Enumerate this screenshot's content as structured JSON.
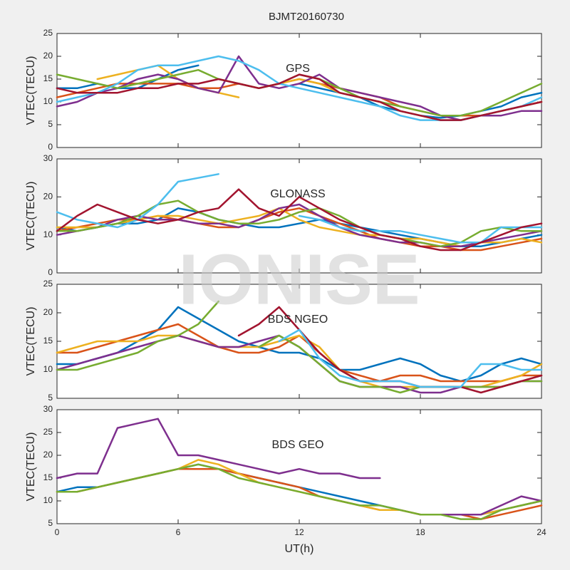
{
  "title": "BJMT20160730",
  "watermark": "IONISE",
  "chart_data": [
    {
      "type": "line",
      "annotation": "GPS",
      "ylabel": "VTEC(TECU)",
      "xlim": [
        0,
        24
      ],
      "xticks": [
        0,
        6,
        12,
        18,
        24
      ],
      "xtick_labels": false,
      "ylim": [
        0,
        25
      ],
      "yticks": [
        0,
        5,
        10,
        15,
        20,
        25
      ],
      "x": [
        0,
        1,
        2,
        3,
        4,
        5,
        6,
        7,
        8,
        9,
        10,
        11,
        12,
        13,
        14,
        15,
        16,
        17,
        18,
        19,
        20,
        21,
        22,
        23,
        24
      ],
      "series": [
        {
          "color": "#0072BD",
          "values": [
            13,
            13,
            14,
            13,
            13,
            15,
            17,
            18,
            null,
            null,
            null,
            null,
            14,
            13,
            12,
            11,
            9,
            8,
            7,
            6.5,
            7,
            8,
            9,
            11,
            12
          ]
        },
        {
          "color": "#D95319",
          "values": [
            11,
            12,
            13,
            14,
            14,
            14,
            14,
            13,
            13,
            14,
            13,
            14,
            15,
            14,
            13,
            12,
            11,
            9,
            8,
            7,
            7,
            7,
            8,
            9,
            10
          ]
        },
        {
          "color": "#EDB120",
          "values": [
            null,
            null,
            15,
            16,
            17,
            18,
            15,
            13,
            12,
            11,
            null,
            14,
            15,
            14,
            12,
            11,
            10,
            8,
            7,
            6,
            6,
            7,
            8,
            9,
            10
          ]
        },
        {
          "color": "#7E2F8E",
          "values": [
            9,
            10,
            12,
            13,
            15,
            16,
            15,
            13,
            12,
            20,
            14,
            13,
            14,
            16,
            13,
            12,
            11,
            10,
            9,
            7,
            6,
            7,
            7,
            8,
            8
          ]
        },
        {
          "color": "#77AC30",
          "values": [
            16,
            15,
            14,
            13,
            14,
            15,
            16,
            17,
            15,
            14,
            13,
            14,
            16,
            15,
            13,
            11,
            10,
            9,
            8,
            7,
            7,
            8,
            10,
            12,
            14
          ]
        },
        {
          "color": "#4DBEEE",
          "values": [
            10,
            11,
            12,
            14,
            17,
            18,
            18,
            19,
            20,
            19,
            17,
            14,
            13,
            12,
            11,
            10,
            9,
            7,
            6,
            6,
            6,
            7,
            8,
            9,
            11
          ]
        },
        {
          "color": "#A2142F",
          "values": [
            13,
            12,
            12,
            12,
            13,
            13,
            14,
            14,
            15,
            14,
            13,
            14,
            16,
            15,
            12,
            11,
            10,
            8,
            7,
            6,
            6,
            7,
            8,
            9,
            10
          ]
        }
      ]
    },
    {
      "type": "line",
      "annotation": "GLONASS",
      "ylabel": "VTEC(TECU)",
      "xlim": [
        0,
        24
      ],
      "xticks": [
        0,
        6,
        12,
        18,
        24
      ],
      "xtick_labels": false,
      "ylim": [
        0,
        30
      ],
      "yticks": [
        0,
        10,
        20,
        30
      ],
      "x": [
        0,
        1,
        2,
        3,
        4,
        5,
        6,
        7,
        8,
        9,
        10,
        11,
        12,
        13,
        14,
        15,
        16,
        17,
        18,
        19,
        20,
        21,
        22,
        23,
        24
      ],
      "series": [
        {
          "color": "#0072BD",
          "values": [
            12,
            11,
            12,
            13,
            13,
            14,
            17,
            16,
            14,
            13,
            12,
            12,
            13,
            14,
            13,
            12,
            11,
            10,
            9,
            8,
            7,
            7,
            8,
            9,
            10
          ]
        },
        {
          "color": "#D95319",
          "values": [
            11,
            12,
            13,
            14,
            14,
            15,
            14,
            13,
            12,
            12,
            14,
            16,
            17,
            15,
            13,
            11,
            9,
            8,
            7,
            7,
            6,
            6,
            7,
            8,
            9
          ]
        },
        {
          "color": "#EDB120",
          "values": [
            12,
            12,
            12,
            13,
            14,
            15,
            15,
            14,
            13,
            14,
            15,
            17,
            14,
            12,
            11,
            10,
            10,
            9,
            9,
            8,
            7,
            8,
            8,
            9,
            8
          ]
        },
        {
          "color": "#7E2F8E",
          "values": [
            10,
            11,
            12,
            14,
            15,
            14,
            14,
            13,
            13,
            12,
            14,
            17,
            18,
            15,
            12,
            10,
            9,
            8,
            8,
            7,
            7,
            8,
            9,
            10,
            11
          ]
        },
        {
          "color": "#77AC30",
          "values": [
            11,
            11,
            12,
            13,
            15,
            18,
            19,
            16,
            14,
            13,
            13,
            14,
            16,
            17,
            15,
            12,
            10,
            9,
            8,
            7,
            8,
            11,
            12,
            11,
            11
          ]
        },
        {
          "color": "#4DBEEE",
          "values": [
            16,
            14,
            13,
            12,
            14,
            18,
            24,
            25,
            26,
            null,
            null,
            null,
            15,
            14,
            12,
            11,
            11,
            11,
            10,
            9,
            8,
            8,
            12,
            12,
            12
          ]
        },
        {
          "color": "#A2142F",
          "values": [
            11,
            15,
            18,
            16,
            14,
            13,
            14,
            16,
            17,
            22,
            17,
            15,
            20,
            17,
            14,
            12,
            10,
            9,
            7,
            6,
            6,
            8,
            10,
            12,
            13
          ]
        }
      ]
    },
    {
      "type": "line",
      "annotation": "BDS NGEO",
      "ylabel": "VTEC(TECU)",
      "xlim": [
        0,
        24
      ],
      "xticks": [
        0,
        6,
        12,
        18,
        24
      ],
      "xtick_labels": false,
      "ylim": [
        5,
        25
      ],
      "yticks": [
        5,
        10,
        15,
        20,
        25
      ],
      "x": [
        0,
        1,
        2,
        3,
        4,
        5,
        6,
        7,
        8,
        9,
        10,
        11,
        12,
        13,
        14,
        15,
        16,
        17,
        18,
        19,
        20,
        21,
        22,
        23,
        24
      ],
      "series": [
        {
          "color": "#0072BD",
          "values": [
            11,
            11,
            12,
            13,
            15,
            17,
            21,
            19,
            17,
            15,
            14,
            13,
            13,
            12,
            10,
            10,
            11,
            12,
            11,
            9,
            8,
            9,
            11,
            12,
            11
          ]
        },
        {
          "color": "#D95319",
          "values": [
            13,
            13,
            14,
            15,
            16,
            17,
            18,
            16,
            14,
            13,
            13,
            14,
            16,
            13,
            10,
            9,
            8,
            9,
            9,
            8,
            8,
            8,
            8,
            9,
            9
          ]
        },
        {
          "color": "#EDB120",
          "values": [
            13,
            14,
            15,
            15,
            15,
            16,
            16,
            15,
            14,
            14,
            14,
            15,
            16,
            14,
            10,
            8,
            7,
            7,
            7,
            7,
            7,
            7,
            8,
            9,
            11
          ]
        },
        {
          "color": "#7E2F8E",
          "values": [
            10,
            11,
            12,
            13,
            14,
            15,
            16,
            15,
            14,
            14,
            15,
            16,
            14,
            11,
            8,
            7,
            7,
            7,
            6,
            6,
            7,
            7,
            7,
            8,
            8
          ]
        },
        {
          "color": "#77AC30",
          "values": [
            10,
            10,
            11,
            12,
            13,
            15,
            16,
            18,
            22,
            null,
            14,
            16,
            14,
            11,
            8,
            7,
            7,
            6,
            7,
            7,
            7,
            7,
            7,
            8,
            8
          ]
        },
        {
          "color": "#A2142F",
          "values": [
            null,
            null,
            null,
            null,
            null,
            null,
            null,
            null,
            null,
            16,
            18,
            21,
            17,
            13,
            10,
            8,
            8,
            8,
            7,
            7,
            7,
            6,
            7,
            8,
            9
          ]
        },
        {
          "color": "#4DBEEE",
          "values": [
            null,
            null,
            null,
            null,
            null,
            null,
            null,
            null,
            null,
            null,
            null,
            15,
            17,
            12,
            9,
            8,
            8,
            8,
            7,
            7,
            7,
            11,
            11,
            10,
            10
          ]
        }
      ]
    },
    {
      "type": "line",
      "annotation": "BDS GEO",
      "ylabel": "VTEC(TECU)",
      "xlabel": "UT(h)",
      "xlim": [
        0,
        24
      ],
      "xticks": [
        0,
        6,
        12,
        18,
        24
      ],
      "xtick_labels": true,
      "ylim": [
        5,
        30
      ],
      "yticks": [
        5,
        10,
        15,
        20,
        25,
        30
      ],
      "x": [
        0,
        1,
        2,
        3,
        4,
        5,
        6,
        7,
        8,
        9,
        10,
        11,
        12,
        13,
        14,
        15,
        16,
        17,
        18,
        19,
        20,
        21,
        22,
        23,
        24
      ],
      "series": [
        {
          "color": "#0072BD",
          "values": [
            12,
            13,
            13,
            14,
            15,
            16,
            17,
            18,
            17,
            16,
            15,
            14,
            13,
            12,
            11,
            10,
            9,
            8,
            7,
            7,
            7,
            7,
            8,
            9,
            10
          ]
        },
        {
          "color": "#D95319",
          "values": [
            12,
            12,
            13,
            14,
            15,
            16,
            17,
            17,
            17,
            16,
            15,
            14,
            13,
            11,
            10,
            9,
            8,
            8,
            7,
            7,
            7,
            6,
            7,
            8,
            9
          ]
        },
        {
          "color": "#EDB120",
          "values": [
            12,
            12,
            13,
            14,
            15,
            16,
            17,
            19,
            18,
            16,
            14,
            13,
            12,
            11,
            10,
            9,
            8,
            8,
            7,
            7,
            7,
            7,
            8,
            9,
            10
          ]
        },
        {
          "color": "#7E2F8E",
          "values": [
            15,
            16,
            16,
            26,
            27,
            28,
            20,
            20,
            19,
            18,
            17,
            16,
            17,
            16,
            16,
            15,
            15,
            null,
            null,
            7,
            7,
            7,
            9,
            11,
            10
          ]
        },
        {
          "color": "#77AC30",
          "values": [
            12,
            12,
            13,
            14,
            15,
            16,
            17,
            18,
            17,
            15,
            14,
            13,
            12,
            11,
            10,
            9,
            9,
            8,
            7,
            7,
            6,
            6,
            8,
            9,
            10
          ]
        }
      ]
    }
  ]
}
